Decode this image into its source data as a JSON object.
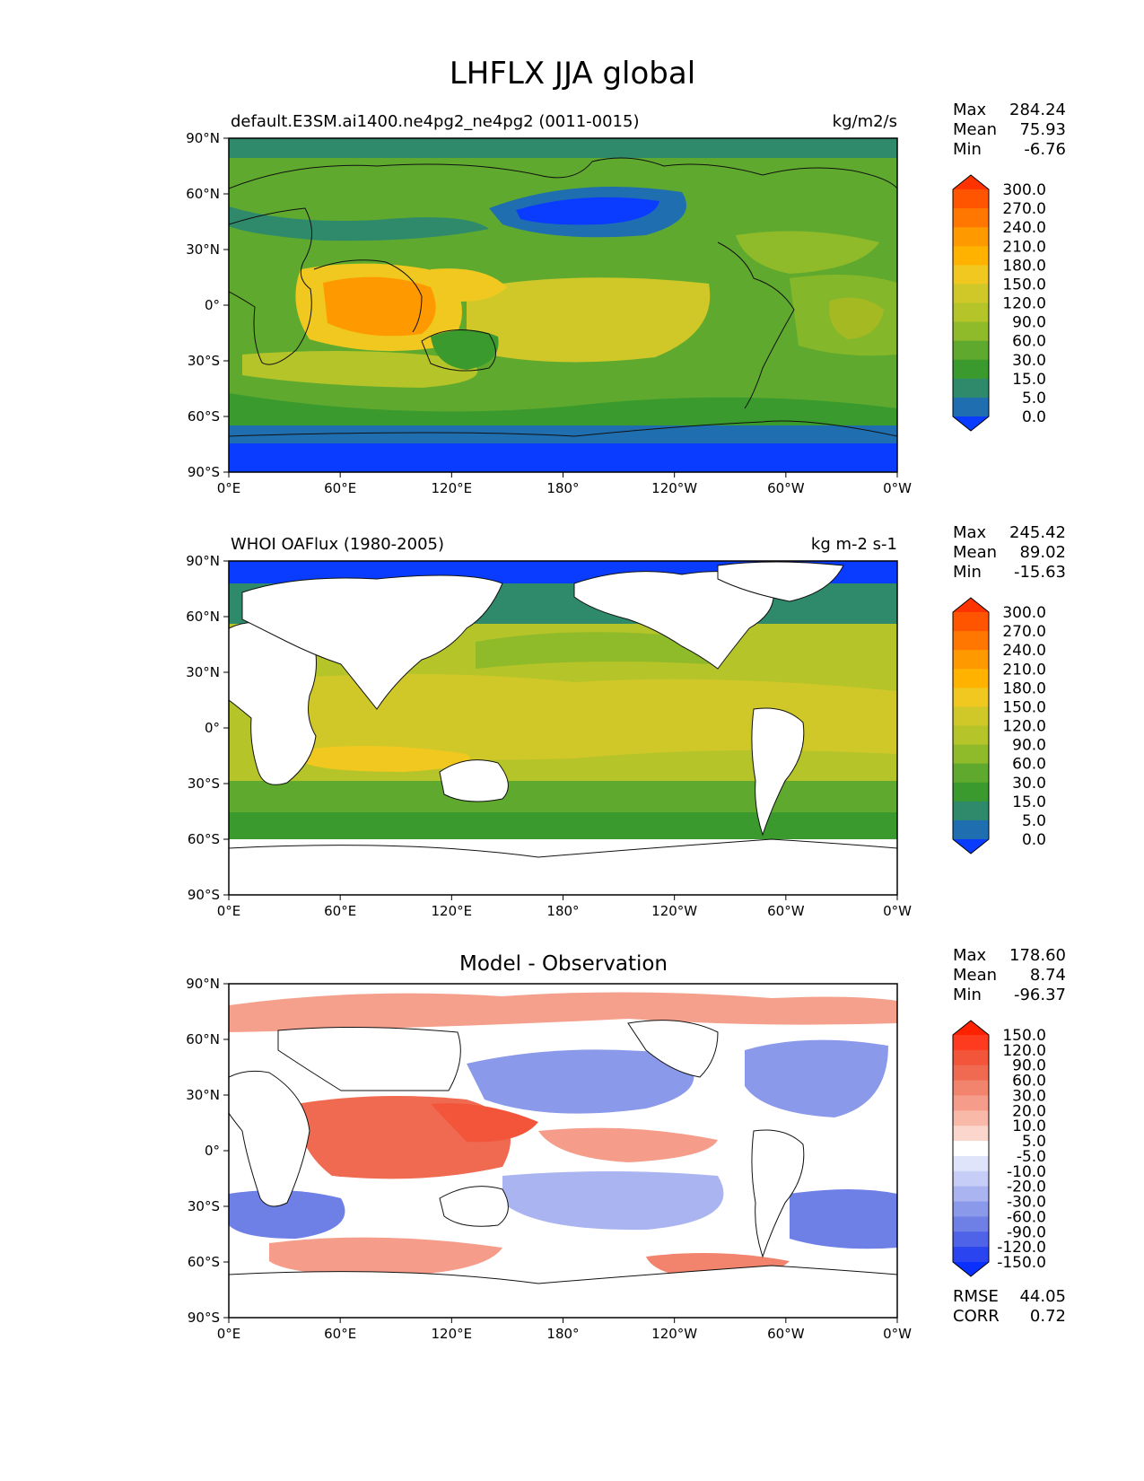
{
  "figure_title": "LHFLX JJA global",
  "chart_data": [
    {
      "type": "heatmap",
      "panel": "test",
      "title_left": "default.E3SM.ai1400.ne4pg2_ne4pg2 (0011-0015)",
      "title_right": "kg/m2/s",
      "stats": [
        {
          "label": "Max",
          "value": "284.24"
        },
        {
          "label": "Mean",
          "value": "75.93"
        },
        {
          "label": "Min",
          "value": "-6.76"
        }
      ],
      "x_ticks": [
        "0°E",
        "60°E",
        "120°E",
        "180°",
        "120°W",
        "60°W",
        "0°W"
      ],
      "y_ticks": [
        "90°N",
        "60°N",
        "30°N",
        "0°",
        "30°S",
        "60°S",
        "90°S"
      ],
      "xlim": [
        0,
        360
      ],
      "ylim": [
        -90,
        90
      ],
      "colorbar_levels": [
        "300.0",
        "270.0",
        "240.0",
        "210.0",
        "180.0",
        "150.0",
        "120.0",
        "90.0",
        "60.0",
        "30.0",
        "15.0",
        "5.0",
        "0.0"
      ],
      "colorbar_colors": [
        "#ff3300",
        "#ff5500",
        "#ff7700",
        "#ff9900",
        "#ffb300",
        "#f0c820",
        "#cfc828",
        "#b5c428",
        "#8fba2a",
        "#5faa2e",
        "#3a9a2e",
        "#2e8a6a",
        "#1f6fb0",
        "#0a3cff"
      ]
    },
    {
      "type": "heatmap",
      "panel": "reference",
      "title_left": "WHOI OAFlux (1980-2005)",
      "title_right": "kg m-2 s-1",
      "stats": [
        {
          "label": "Max",
          "value": "245.42"
        },
        {
          "label": "Mean",
          "value": "89.02"
        },
        {
          "label": "Min",
          "value": "-15.63"
        }
      ],
      "x_ticks": [
        "0°E",
        "60°E",
        "120°E",
        "180°",
        "120°W",
        "60°W",
        "0°W"
      ],
      "y_ticks": [
        "90°N",
        "60°N",
        "30°N",
        "0°",
        "30°S",
        "60°S",
        "90°S"
      ],
      "xlim": [
        0,
        360
      ],
      "ylim": [
        -90,
        90
      ],
      "colorbar_levels": [
        "300.0",
        "270.0",
        "240.0",
        "210.0",
        "180.0",
        "150.0",
        "120.0",
        "90.0",
        "60.0",
        "30.0",
        "15.0",
        "5.0",
        "0.0"
      ],
      "colorbar_colors": [
        "#ff3300",
        "#ff5500",
        "#ff7700",
        "#ff9900",
        "#ffb300",
        "#f0c820",
        "#cfc828",
        "#b5c428",
        "#8fba2a",
        "#5faa2e",
        "#3a9a2e",
        "#2e8a6a",
        "#1f6fb0",
        "#0a3cff"
      ]
    },
    {
      "type": "heatmap",
      "panel": "difference",
      "title_center": "Model - Observation",
      "stats": [
        {
          "label": "Max",
          "value": "178.60"
        },
        {
          "label": "Mean",
          "value": "8.74"
        },
        {
          "label": "Min",
          "value": "-96.37"
        }
      ],
      "metrics": [
        {
          "label": "RMSE",
          "value": "44.05"
        },
        {
          "label": "CORR",
          "value": "0.72"
        }
      ],
      "x_ticks": [
        "0°E",
        "60°E",
        "120°E",
        "180°",
        "120°W",
        "60°W",
        "0°W"
      ],
      "y_ticks": [
        "90°N",
        "60°N",
        "30°N",
        "0°",
        "30°S",
        "60°S",
        "90°S"
      ],
      "xlim": [
        0,
        360
      ],
      "ylim": [
        -90,
        90
      ],
      "colorbar_levels": [
        "150.0",
        "120.0",
        "90.0",
        "60.0",
        "30.0",
        "20.0",
        "10.0",
        "5.0",
        "-5.0",
        "-10.0",
        "-20.0",
        "-30.0",
        "-60.0",
        "-90.0",
        "-120.0",
        "-150.0"
      ],
      "colorbar_colors": [
        "#ff2200",
        "#ff3b1f",
        "#f2553a",
        "#f06a52",
        "#f2836d",
        "#f59d8a",
        "#f8b9a9",
        "#fbd6cc",
        "#ffffff",
        "#dfe4fb",
        "#c6cdf6",
        "#aab4f0",
        "#8b99ea",
        "#6e80e6",
        "#4e63e8",
        "#2a44f0",
        "#0a30ff"
      ]
    }
  ],
  "colors": {
    "frame": "#000000",
    "land_mask": "#ffffff",
    "coast": "#111111"
  }
}
